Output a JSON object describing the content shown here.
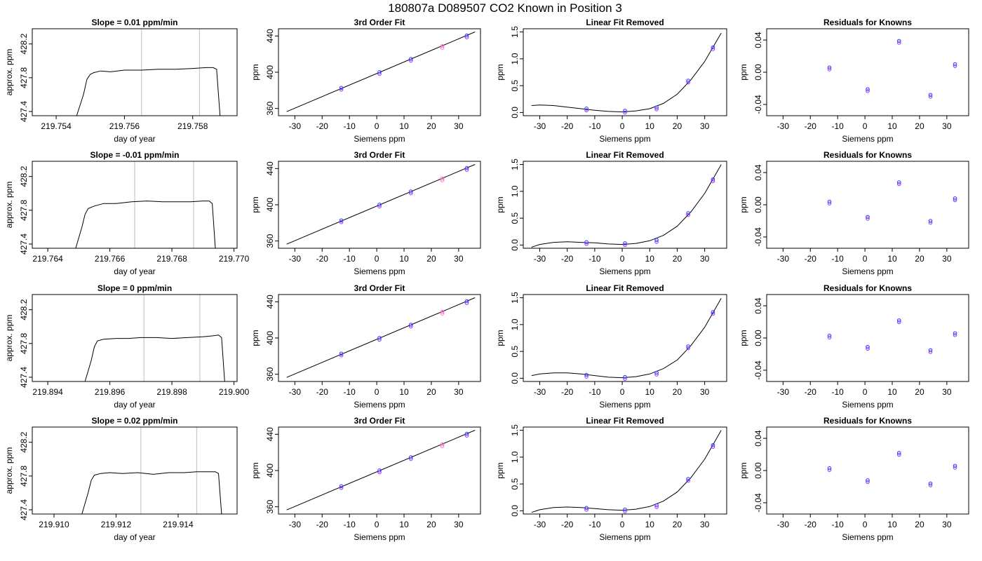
{
  "figure": {
    "title": "180807a      D089507   CO2 Known in Position  3",
    "colors": {
      "line": "#000000",
      "grid": "#c8c8c8",
      "pt_blue": "#1f3bff",
      "pt_purple": "#9b30ff",
      "pt_pink": "#ff6ec7"
    }
  },
  "chart_data": [
    {
      "type": "line",
      "row": 1,
      "col": 1,
      "title": "Slope =  0.01  ppm/min",
      "xlabel": "day of year",
      "ylabel": "approx. ppm",
      "xlim": [
        219.7533,
        219.7593
      ],
      "ylim": [
        427.35,
        428.38
      ],
      "xticks": [
        219.754,
        219.756,
        219.758
      ],
      "xticklabels": [
        "219.754",
        "219.756",
        "219.758"
      ],
      "yticks": [
        427.4,
        427.8,
        428.2
      ],
      "yticklabels": [
        "427.4",
        "427.8",
        "428.2"
      ],
      "vlines": [
        219.7565,
        219.7582
      ],
      "series": [
        {
          "x": [
            219.7546,
            219.7548,
            219.7549,
            219.755,
            219.7551,
            219.7553,
            219.7556,
            219.756,
            219.7565,
            219.757,
            219.7575,
            219.758,
            219.7584,
            219.7586,
            219.7587,
            219.7588
          ],
          "y": [
            427.35,
            427.6,
            427.78,
            427.84,
            427.86,
            427.88,
            427.87,
            427.89,
            427.89,
            427.9,
            427.9,
            427.91,
            427.92,
            427.92,
            427.9,
            427.35
          ]
        }
      ]
    },
    {
      "type": "scatter",
      "row": 1,
      "col": 2,
      "title": "3rd Order Fit",
      "xlabel": "Siemens ppm",
      "ylabel": "ppm",
      "xlim": [
        -36,
        38
      ],
      "ylim": [
        352,
        448
      ],
      "xticks": [
        -30,
        -20,
        -10,
        0,
        10,
        20,
        30
      ],
      "xticklabels": [
        "-30",
        "-20",
        "-10",
        "0",
        "10",
        "20",
        "30"
      ],
      "yticks": [
        360,
        400,
        440
      ],
      "yticklabels": [
        "360",
        "400",
        "440"
      ],
      "fit_line": {
        "x": [
          -33,
          36
        ],
        "y": [
          356.5,
          444.5
        ]
      },
      "points": {
        "x": [
          -13,
          1,
          12.5,
          24,
          33
        ],
        "y": [
          382,
          399.3,
          413.9,
          428.2,
          439.8
        ]
      }
    },
    {
      "type": "scatter",
      "row": 1,
      "col": 3,
      "title": "Linear Fit Removed",
      "xlabel": "Siemens ppm",
      "ylabel": "ppm",
      "xlim": [
        -36,
        38
      ],
      "ylim": [
        -0.06,
        1.56
      ],
      "xticks": [
        -30,
        -20,
        -10,
        0,
        10,
        20,
        30
      ],
      "xticklabels": [
        "-30",
        "-20",
        "-10",
        "0",
        "10",
        "20",
        "30"
      ],
      "yticks": [
        0,
        0.5,
        1.0,
        1.5
      ],
      "yticklabels": [
        "0.0",
        "0.5",
        "1.0",
        "1.5"
      ],
      "curve": {
        "x": [
          -33,
          -30,
          -25,
          -20,
          -15,
          -10,
          -5,
          0,
          5,
          10,
          15,
          20,
          25,
          30,
          36
        ],
        "y": [
          0.13,
          0.14,
          0.13,
          0.1,
          0.07,
          0.04,
          0.02,
          0.01,
          0.03,
          0.07,
          0.17,
          0.34,
          0.61,
          0.95,
          1.48
        ]
      },
      "points": {
        "x": [
          -13,
          1,
          12.5,
          24,
          33
        ],
        "y": [
          0.06,
          0.02,
          0.08,
          0.58,
          1.2
        ]
      }
    },
    {
      "type": "scatter",
      "row": 1,
      "col": 4,
      "title": "Residuals for Knowns",
      "xlabel": "Siemens ppm",
      "ylabel": "ppm",
      "xlim": [
        -36,
        38
      ],
      "ylim": [
        -0.054,
        0.054
      ],
      "xticks": [
        -30,
        -20,
        -10,
        0,
        10,
        20,
        30
      ],
      "xticklabels": [
        "-30",
        "-20",
        "-10",
        "0",
        "10",
        "20",
        "30"
      ],
      "yticks": [
        -0.04,
        0.0,
        0.04
      ],
      "yticklabels": [
        "-0.04",
        "0.00",
        "0.04"
      ],
      "points": {
        "x": [
          -13,
          1,
          12.5,
          24,
          33
        ],
        "y": [
          0.005,
          -0.022,
          0.038,
          -0.029,
          0.009
        ]
      }
    },
    {
      "type": "line",
      "row": 2,
      "col": 1,
      "title": "Slope =  -0.01  ppm/min",
      "xlabel": "day of year",
      "ylabel": "approx. ppm",
      "xlim": [
        219.7635,
        219.7701
      ],
      "ylim": [
        427.35,
        428.38
      ],
      "xticks": [
        219.764,
        219.766,
        219.768,
        219.77
      ],
      "xticklabels": [
        "219.764",
        "219.766",
        "219.768",
        "219.770"
      ],
      "yticks": [
        427.4,
        427.8,
        428.2
      ],
      "yticklabels": [
        "427.4",
        "427.8",
        "428.2"
      ],
      "vlines": [
        219.7668,
        219.7687
      ],
      "series": [
        {
          "x": [
            219.7649,
            219.7651,
            219.7652,
            219.7653,
            219.7655,
            219.7658,
            219.7662,
            219.7667,
            219.7672,
            219.7677,
            219.7682,
            219.7686,
            219.769,
            219.7692,
            219.7693,
            219.7694
          ],
          "y": [
            427.35,
            427.6,
            427.75,
            427.82,
            427.85,
            427.88,
            427.88,
            427.9,
            427.91,
            427.9,
            427.9,
            427.9,
            427.91,
            427.91,
            427.88,
            427.35
          ]
        }
      ]
    },
    {
      "type": "scatter",
      "row": 2,
      "col": 2,
      "title": "3rd Order Fit",
      "xlabel": "Siemens ppm",
      "ylabel": "ppm",
      "xlim": [
        -36,
        38
      ],
      "ylim": [
        352,
        448
      ],
      "xticks": [
        -30,
        -20,
        -10,
        0,
        10,
        20,
        30
      ],
      "xticklabels": [
        "-30",
        "-20",
        "-10",
        "0",
        "10",
        "20",
        "30"
      ],
      "yticks": [
        360,
        400,
        440
      ],
      "yticklabels": [
        "360",
        "400",
        "440"
      ],
      "fit_line": {
        "x": [
          -33,
          36
        ],
        "y": [
          356.5,
          444.5
        ]
      },
      "points": {
        "x": [
          -13,
          1,
          12.5,
          24,
          33
        ],
        "y": [
          382,
          399.3,
          413.9,
          428.2,
          439.8
        ]
      }
    },
    {
      "type": "scatter",
      "row": 2,
      "col": 3,
      "title": "Linear Fit Removed",
      "xlabel": "Siemens ppm",
      "ylabel": "ppm",
      "xlim": [
        -36,
        38
      ],
      "ylim": [
        -0.06,
        1.56
      ],
      "xticks": [
        -30,
        -20,
        -10,
        0,
        10,
        20,
        30
      ],
      "xticklabels": [
        "-30",
        "-20",
        "-10",
        "0",
        "10",
        "20",
        "30"
      ],
      "yticks": [
        0,
        0.5,
        1.0,
        1.5
      ],
      "yticklabels": [
        "0.0",
        "0.5",
        "1.0",
        "1.5"
      ],
      "curve": {
        "x": [
          -33,
          -30,
          -25,
          -20,
          -15,
          -10,
          -5,
          0,
          5,
          10,
          15,
          20,
          25,
          30,
          36
        ],
        "y": [
          -0.04,
          0.01,
          0.05,
          0.06,
          0.05,
          0.04,
          0.02,
          0.01,
          0.03,
          0.08,
          0.18,
          0.35,
          0.62,
          0.96,
          1.5
        ]
      },
      "points": {
        "x": [
          -13,
          1,
          12.5,
          24,
          33
        ],
        "y": [
          0.04,
          0.02,
          0.08,
          0.58,
          1.21
        ]
      }
    },
    {
      "type": "scatter",
      "row": 2,
      "col": 4,
      "title": "Residuals for Knowns",
      "xlabel": "Siemens ppm",
      "ylabel": "ppm",
      "xlim": [
        -36,
        38
      ],
      "ylim": [
        -0.054,
        0.054
      ],
      "xticks": [
        -30,
        -20,
        -10,
        0,
        10,
        20,
        30
      ],
      "xticklabels": [
        "-30",
        "-20",
        "-10",
        "0",
        "10",
        "20",
        "30"
      ],
      "yticks": [
        -0.04,
        0.0,
        0.04
      ],
      "yticklabels": [
        "-0.04",
        "0.00",
        "0.04"
      ],
      "points": {
        "x": [
          -13,
          1,
          12.5,
          24,
          33
        ],
        "y": [
          0.003,
          -0.016,
          0.027,
          -0.021,
          0.007
        ]
      }
    },
    {
      "type": "line",
      "row": 3,
      "col": 1,
      "title": "Slope =  0  ppm/min",
      "xlabel": "day of year",
      "ylabel": "approx. ppm",
      "xlim": [
        219.8935,
        219.9001
      ],
      "ylim": [
        427.35,
        428.38
      ],
      "xticks": [
        219.894,
        219.896,
        219.898,
        219.9
      ],
      "xticklabels": [
        "219.894",
        "219.896",
        "219.898",
        "219.900"
      ],
      "yticks": [
        427.4,
        427.8,
        428.2
      ],
      "yticklabels": [
        "427.4",
        "427.8",
        "428.2"
      ],
      "vlines": [
        219.8971,
        219.8989
      ],
      "series": [
        {
          "x": [
            219.8952,
            219.8954,
            219.8955,
            219.8956,
            219.8958,
            219.8962,
            219.8966,
            219.897,
            219.8975,
            219.898,
            219.8985,
            219.899,
            219.8993,
            219.8995,
            219.8996,
            219.8997
          ],
          "y": [
            427.35,
            427.6,
            427.76,
            427.83,
            427.85,
            427.86,
            427.86,
            427.87,
            427.87,
            427.86,
            427.87,
            427.88,
            427.89,
            427.9,
            427.87,
            427.35
          ]
        }
      ]
    },
    {
      "type": "scatter",
      "row": 3,
      "col": 2,
      "title": "3rd Order Fit",
      "xlabel": "Siemens ppm",
      "ylabel": "ppm",
      "xlim": [
        -36,
        38
      ],
      "ylim": [
        352,
        448
      ],
      "xticks": [
        -30,
        -20,
        -10,
        0,
        10,
        20,
        30
      ],
      "xticklabels": [
        "-30",
        "-20",
        "-10",
        "0",
        "10",
        "20",
        "30"
      ],
      "yticks": [
        360,
        400,
        440
      ],
      "yticklabels": [
        "360",
        "400",
        "440"
      ],
      "fit_line": {
        "x": [
          -33,
          36
        ],
        "y": [
          356.5,
          444.5
        ]
      },
      "points": {
        "x": [
          -13,
          1,
          12.5,
          24,
          33
        ],
        "y": [
          382,
          399.3,
          413.9,
          428.2,
          439.8
        ]
      }
    },
    {
      "type": "scatter",
      "row": 3,
      "col": 3,
      "title": "Linear Fit Removed",
      "xlabel": "Siemens ppm",
      "ylabel": "ppm",
      "xlim": [
        -36,
        38
      ],
      "ylim": [
        -0.06,
        1.56
      ],
      "xticks": [
        -30,
        -20,
        -10,
        0,
        10,
        20,
        30
      ],
      "xticklabels": [
        "-30",
        "-20",
        "-10",
        "0",
        "10",
        "20",
        "30"
      ],
      "yticks": [
        0,
        0.5,
        1.0,
        1.5
      ],
      "yticklabels": [
        "0.0",
        "0.5",
        "1.0",
        "1.5"
      ],
      "curve": {
        "x": [
          -33,
          -30,
          -25,
          -20,
          -15,
          -10,
          -5,
          0,
          5,
          10,
          15,
          20,
          25,
          30,
          36
        ],
        "y": [
          0.05,
          0.08,
          0.1,
          0.1,
          0.08,
          0.05,
          0.02,
          0.01,
          0.03,
          0.08,
          0.18,
          0.34,
          0.61,
          0.95,
          1.49
        ]
      },
      "points": {
        "x": [
          -13,
          1,
          12.5,
          24,
          33
        ],
        "y": [
          0.05,
          0.01,
          0.09,
          0.58,
          1.22
        ]
      }
    },
    {
      "type": "scatter",
      "row": 3,
      "col": 4,
      "title": "Residuals for Knowns",
      "xlabel": "Siemens ppm",
      "ylabel": "ppm",
      "xlim": [
        -36,
        38
      ],
      "ylim": [
        -0.054,
        0.054
      ],
      "xticks": [
        -30,
        -20,
        -10,
        0,
        10,
        20,
        30
      ],
      "xticklabels": [
        "-30",
        "-20",
        "-10",
        "0",
        "10",
        "20",
        "30"
      ],
      "yticks": [
        -0.04,
        0.0,
        0.04
      ],
      "yticklabels": [
        "-0.04",
        "0.00",
        "0.04"
      ],
      "points": {
        "x": [
          -13,
          1,
          12.5,
          24,
          33
        ],
        "y": [
          0.002,
          -0.012,
          0.021,
          -0.016,
          0.005
        ]
      }
    },
    {
      "type": "line",
      "row": 4,
      "col": 1,
      "title": "Slope =  0.02  ppm/min",
      "xlabel": "day of year",
      "ylabel": "approx. ppm",
      "xlim": [
        219.9093,
        219.9159
      ],
      "ylim": [
        427.35,
        428.38
      ],
      "xticks": [
        219.91,
        219.912,
        219.914
      ],
      "xticklabels": [
        "219.910",
        "219.912",
        "219.914"
      ],
      "yticks": [
        427.4,
        427.8,
        428.2
      ],
      "yticklabels": [
        "427.4",
        "427.8",
        "428.2"
      ],
      "vlines": [
        219.9128,
        219.9146
      ],
      "series": [
        {
          "x": [
            219.9109,
            219.9111,
            219.9112,
            219.9113,
            219.9115,
            219.9118,
            219.9122,
            219.9127,
            219.9132,
            219.9137,
            219.9142,
            219.9146,
            219.915,
            219.9152,
            219.9153,
            219.9154
          ],
          "y": [
            427.35,
            427.6,
            427.75,
            427.81,
            427.83,
            427.84,
            427.83,
            427.84,
            427.82,
            427.84,
            427.84,
            427.85,
            427.85,
            427.85,
            427.83,
            427.35
          ]
        }
      ]
    },
    {
      "type": "scatter",
      "row": 4,
      "col": 2,
      "title": "3rd Order Fit",
      "xlabel": "Siemens ppm",
      "ylabel": "ppm",
      "xlim": [
        -36,
        38
      ],
      "ylim": [
        352,
        448
      ],
      "xticks": [
        -30,
        -20,
        -10,
        0,
        10,
        20,
        30
      ],
      "xticklabels": [
        "-30",
        "-20",
        "-10",
        "0",
        "10",
        "20",
        "30"
      ],
      "yticks": [
        360,
        400,
        440
      ],
      "yticklabels": [
        "360",
        "400",
        "440"
      ],
      "fit_line": {
        "x": [
          -33,
          36
        ],
        "y": [
          356.5,
          444.5
        ]
      },
      "points": {
        "x": [
          -13,
          1,
          12.5,
          24,
          33
        ],
        "y": [
          382,
          399.3,
          413.9,
          428.2,
          439.8
        ]
      }
    },
    {
      "type": "scatter",
      "row": 4,
      "col": 3,
      "title": "Linear Fit Removed",
      "xlabel": "Siemens ppm",
      "ylabel": "ppm",
      "xlim": [
        -36,
        38
      ],
      "ylim": [
        -0.06,
        1.56
      ],
      "xticks": [
        -30,
        -20,
        -10,
        0,
        10,
        20,
        30
      ],
      "xticklabels": [
        "-30",
        "-20",
        "-10",
        "0",
        "10",
        "20",
        "30"
      ],
      "yticks": [
        0,
        0.5,
        1.0,
        1.5
      ],
      "yticklabels": [
        "0.0",
        "0.5",
        "1.0",
        "1.5"
      ],
      "curve": {
        "x": [
          -33,
          -30,
          -25,
          -20,
          -15,
          -10,
          -5,
          0,
          5,
          10,
          15,
          20,
          25,
          30,
          36
        ],
        "y": [
          -0.03,
          0.02,
          0.06,
          0.07,
          0.06,
          0.04,
          0.02,
          0.01,
          0.03,
          0.08,
          0.18,
          0.35,
          0.62,
          0.96,
          1.5
        ]
      },
      "points": {
        "x": [
          -13,
          1,
          12.5,
          24,
          33
        ],
        "y": [
          0.04,
          0.01,
          0.09,
          0.58,
          1.21
        ]
      }
    },
    {
      "type": "scatter",
      "row": 4,
      "col": 4,
      "title": "Residuals for Knowns",
      "xlabel": "Siemens ppm",
      "ylabel": "ppm",
      "xlim": [
        -36,
        38
      ],
      "ylim": [
        -0.054,
        0.054
      ],
      "xticks": [
        -30,
        -20,
        -10,
        0,
        10,
        20,
        30
      ],
      "xticklabels": [
        "-30",
        "-20",
        "-10",
        "0",
        "10",
        "20",
        "30"
      ],
      "yticks": [
        -0.04,
        0.0,
        0.04
      ],
      "yticklabels": [
        "-0.04",
        "0.00",
        "0.04"
      ],
      "points": {
        "x": [
          -13,
          1,
          12.5,
          24,
          33
        ],
        "y": [
          0.002,
          -0.013,
          0.021,
          -0.017,
          0.005
        ]
      }
    }
  ]
}
